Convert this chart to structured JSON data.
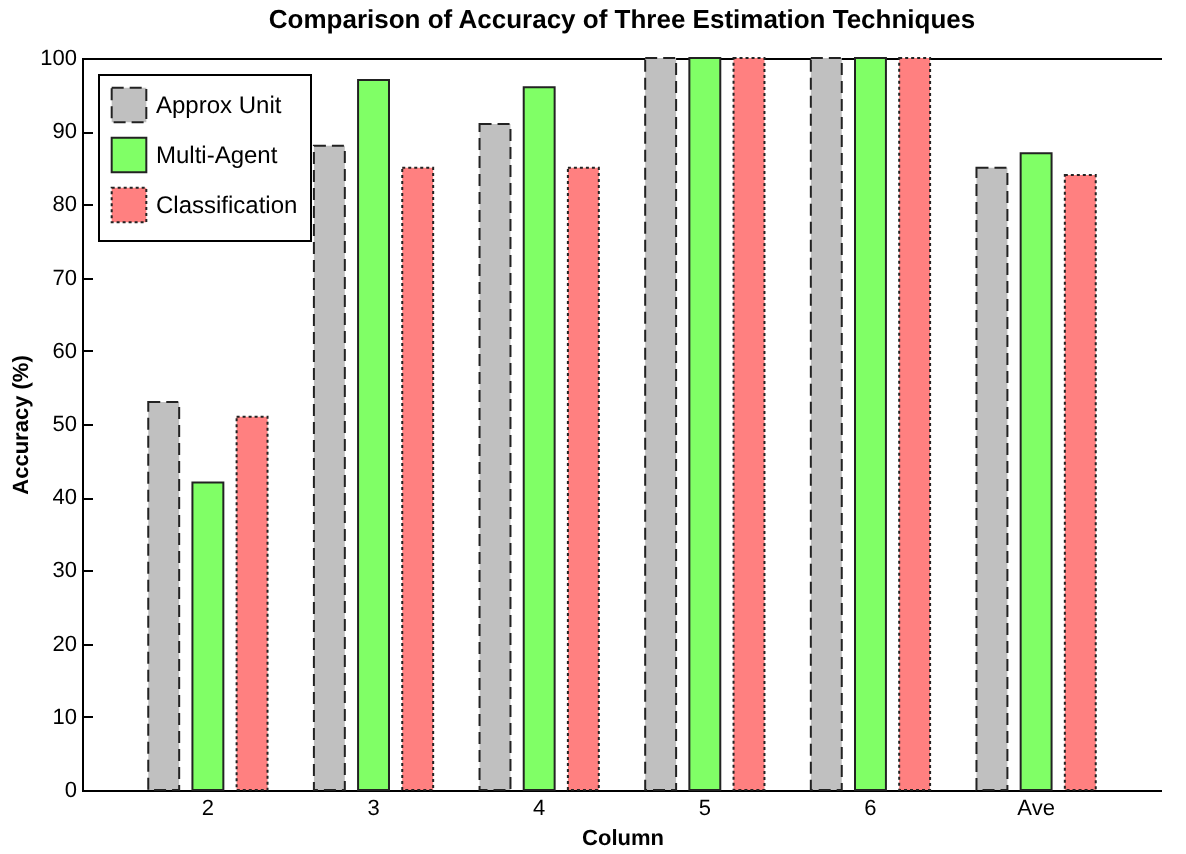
{
  "chart_data": {
    "type": "bar",
    "title": "Comparison of Accuracy of Three Estimation Techniques",
    "xlabel": "Column",
    "ylabel": "Accuracy (%)",
    "categories": [
      "2",
      "3",
      "4",
      "5",
      "6",
      "Ave"
    ],
    "series": [
      {
        "name": "Approx Unit",
        "color": "#c0c0c0",
        "line_style": "dashed",
        "values": [
          53,
          88,
          91,
          100,
          100,
          85
        ]
      },
      {
        "name": "Multi-Agent",
        "color": "#80ff66",
        "line_style": "solid",
        "values": [
          42,
          97,
          96,
          100,
          100,
          87
        ]
      },
      {
        "name": "Classification",
        "color": "#ff8080",
        "line_style": "dotted",
        "values": [
          51,
          85,
          85,
          100,
          100,
          84
        ]
      }
    ],
    "ylim": [
      0,
      100
    ],
    "yticks": [
      0,
      10,
      20,
      30,
      40,
      50,
      60,
      70,
      80,
      90,
      100
    ],
    "grid": false,
    "legend": "top left"
  }
}
